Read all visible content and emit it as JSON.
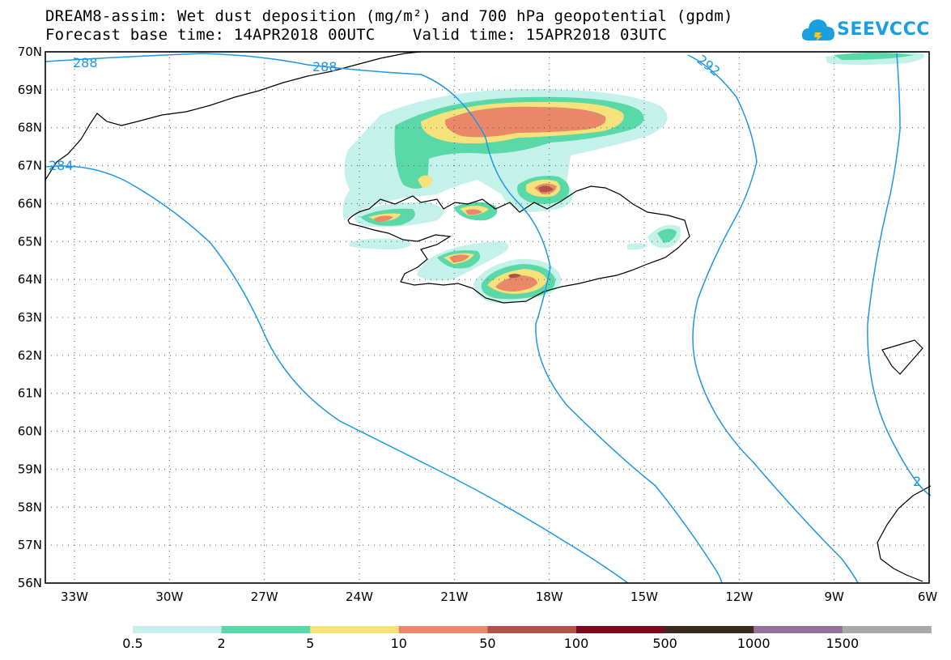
{
  "title": {
    "line1": "DREAM8-assim: Wet dust deposition (mg/m²) and 700 hPa geopotential (gpdm)",
    "line2": "Forecast base time: 14APR2018 00UTC    Valid time: 15APR2018 03UTC"
  },
  "logo": {
    "text": "SEEVCCC",
    "icon": "cloud-icon",
    "color": "#1a9fe0"
  },
  "map": {
    "lat_labels": [
      "70N",
      "69N",
      "68N",
      "67N",
      "66N",
      "65N",
      "64N",
      "63N",
      "62N",
      "61N",
      "60N",
      "59N",
      "58N",
      "57N",
      "56N"
    ],
    "lon_labels": [
      "33W",
      "30W",
      "27W",
      "24W",
      "21W",
      "18W",
      "15W",
      "12W",
      "9W",
      "6W"
    ],
    "contour_labels": [
      "288",
      "288",
      "292",
      "284",
      "2"
    ],
    "contour_color": "#1e96e6"
  },
  "legend": {
    "labels": [
      "0.5",
      "2",
      "5",
      "10",
      "50",
      "100",
      "500",
      "1000",
      "1500"
    ],
    "colors": [
      "#c4f2ea",
      "#5ad8a8",
      "#f5e27a",
      "#e9896a",
      "#b0544a",
      "#7a0a1c",
      "#3a2a20",
      "#94709c",
      "#a9a9a9"
    ]
  }
}
